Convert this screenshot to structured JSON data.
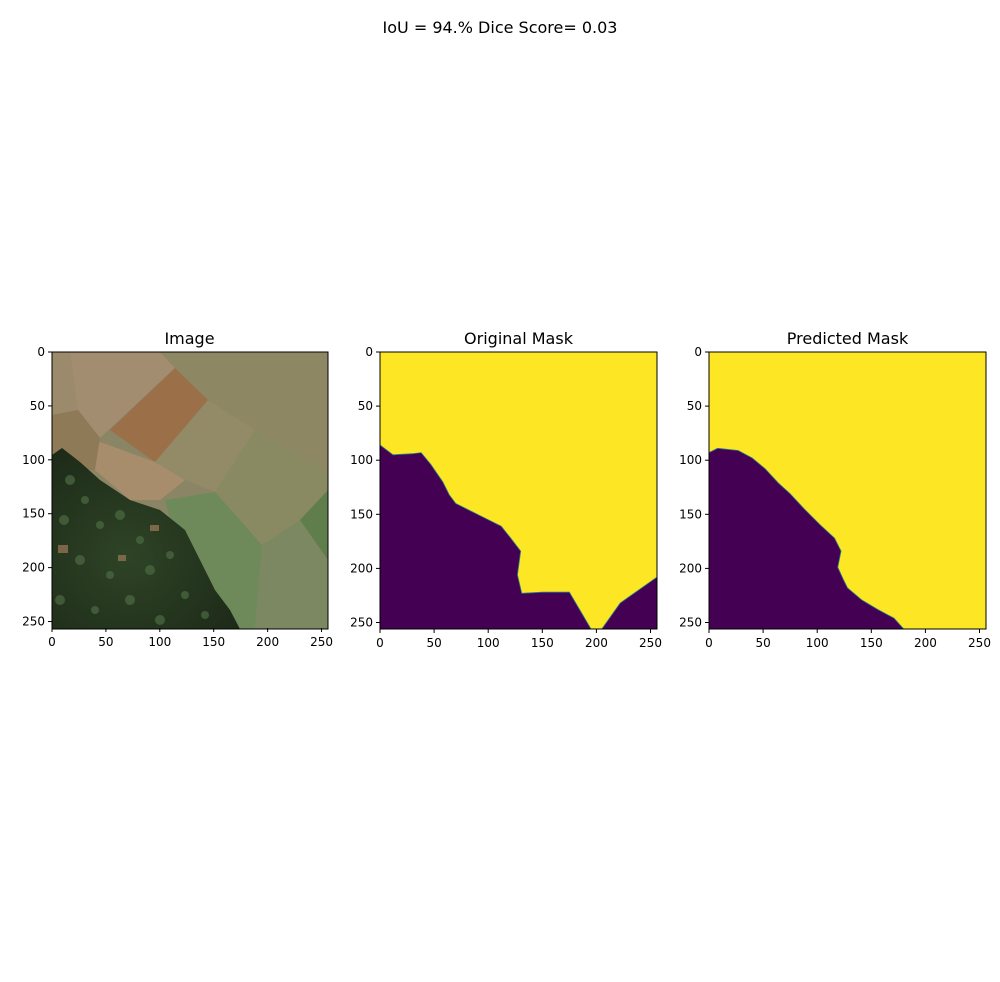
{
  "suptitle": "IoU = 94.% Dice Score= 0.03",
  "colors": {
    "mask_foreground": "#fde725",
    "mask_background": "#440154",
    "edge_teal": "#2a788e",
    "axis": "#000000",
    "field_tan": "#a08764",
    "field_brown": "#9a6e48",
    "field_olive": "#8e8a66",
    "field_green": "#6f8a5a",
    "forest_dark": "#27381f",
    "forest_mid": "#3f5a3a"
  },
  "chart_data": [
    {
      "type": "image",
      "title": "Image",
      "xlim": [
        0,
        256
      ],
      "ylim": [
        256,
        0
      ],
      "xticks": [
        0,
        50,
        100,
        150,
        200,
        250
      ],
      "yticks": [
        0,
        50,
        100,
        150,
        200,
        250
      ],
      "content": "aerial photo of agricultural fields with a forest in the lower-left"
    },
    {
      "type": "heatmap",
      "title": "Original Mask",
      "xlim": [
        0,
        256
      ],
      "ylim": [
        256,
        0
      ],
      "xticks": [
        0,
        50,
        100,
        150,
        200,
        250
      ],
      "yticks": [
        0,
        50,
        100,
        150,
        200,
        250
      ],
      "classes": [
        {
          "value": 1,
          "color": "#fde725"
        },
        {
          "value": 0,
          "color": "#440154"
        }
      ],
      "class0_boundary": [
        [
          0,
          86
        ],
        [
          12,
          95
        ],
        [
          30,
          94
        ],
        [
          38,
          93
        ],
        [
          47,
          104
        ],
        [
          58,
          120
        ],
        [
          64,
          132
        ],
        [
          70,
          140
        ],
        [
          82,
          146
        ],
        [
          96,
          153
        ],
        [
          112,
          161
        ],
        [
          120,
          171
        ],
        [
          130,
          184
        ],
        [
          127,
          206
        ],
        [
          131,
          223
        ],
        [
          150,
          222
        ],
        [
          162,
          222
        ],
        [
          175,
          222
        ],
        [
          195,
          256
        ],
        [
          205,
          256
        ],
        [
          222,
          232
        ],
        [
          256,
          208
        ]
      ]
    },
    {
      "type": "heatmap",
      "title": "Predicted Mask",
      "xlim": [
        0,
        256
      ],
      "ylim": [
        256,
        0
      ],
      "xticks": [
        0,
        50,
        100,
        150,
        200,
        250
      ],
      "yticks": [
        0,
        50,
        100,
        150,
        200,
        250
      ],
      "classes": [
        {
          "value": 1,
          "color": "#fde725"
        },
        {
          "value": 0,
          "color": "#440154"
        }
      ],
      "class0_boundary": [
        [
          0,
          93
        ],
        [
          8,
          89
        ],
        [
          27,
          91
        ],
        [
          40,
          98
        ],
        [
          52,
          108
        ],
        [
          64,
          121
        ],
        [
          75,
          131
        ],
        [
          88,
          145
        ],
        [
          103,
          160
        ],
        [
          116,
          172
        ],
        [
          122,
          184
        ],
        [
          119,
          199
        ],
        [
          124,
          210
        ],
        [
          128,
          218
        ],
        [
          141,
          229
        ],
        [
          156,
          238
        ],
        [
          171,
          246
        ],
        [
          180,
          256
        ]
      ]
    }
  ]
}
